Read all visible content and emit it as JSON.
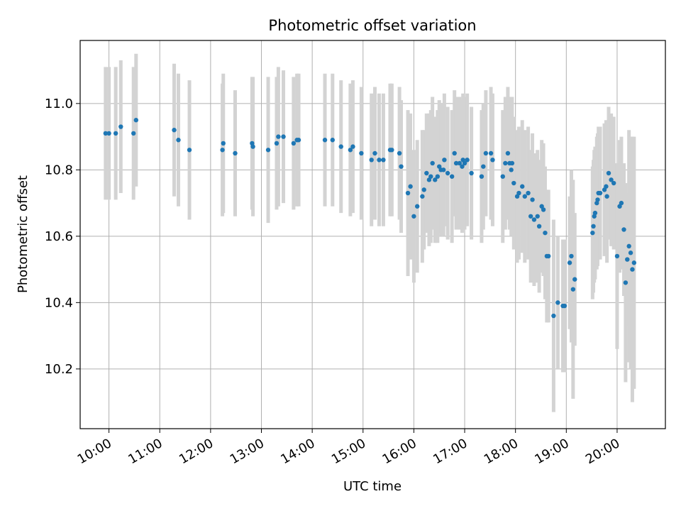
{
  "chart_data": {
    "type": "scatter",
    "title": "Photometric offset variation",
    "xlabel": "UTC time",
    "ylabel": "Photometric offset",
    "x_tick_labels": [
      "10:00",
      "11:00",
      "12:00",
      "13:00",
      "14:00",
      "15:00",
      "16:00",
      "17:00",
      "18:00",
      "19:00",
      "20:00"
    ],
    "y_ticks": [
      10.2,
      10.4,
      10.6,
      10.8,
      11.0
    ],
    "y_tick_labels": [
      "10.2",
      "10.4",
      "10.6",
      "10.8",
      "11.0"
    ],
    "xlim": [
      "09:26",
      "20:57"
    ],
    "ylim": [
      10.02,
      11.19
    ],
    "grid": true,
    "colors": {
      "marker": "#1f77b4",
      "errorbar": "#d3d3d3",
      "grid": "#b0b0b0"
    },
    "series": [
      {
        "points": [
          {
            "t": "09:56",
            "y": 10.91,
            "err": 0.2
          },
          {
            "t": "10:00",
            "y": 10.91,
            "err": 0.2
          },
          {
            "t": "10:08",
            "y": 10.91,
            "err": 0.2
          },
          {
            "t": "10:14",
            "y": 10.93,
            "err": 0.2
          },
          {
            "t": "10:29",
            "y": 10.91,
            "err": 0.2
          },
          {
            "t": "10:32",
            "y": 10.95,
            "err": 0.2
          },
          {
            "t": "11:17",
            "y": 10.92,
            "err": 0.2
          },
          {
            "t": "11:22",
            "y": 10.89,
            "err": 0.2
          },
          {
            "t": "11:35",
            "y": 10.86,
            "err": 0.21
          },
          {
            "t": "12:14",
            "y": 10.86,
            "err": 0.2
          },
          {
            "t": "12:15",
            "y": 10.88,
            "err": 0.21
          },
          {
            "t": "12:29",
            "y": 10.85,
            "err": 0.19
          },
          {
            "t": "12:49",
            "y": 10.88,
            "err": 0.2
          },
          {
            "t": "12:50",
            "y": 10.87,
            "err": 0.21
          },
          {
            "t": "13:08",
            "y": 10.86,
            "err": 0.22
          },
          {
            "t": "13:18",
            "y": 10.88,
            "err": 0.2
          },
          {
            "t": "13:20",
            "y": 10.9,
            "err": 0.21
          },
          {
            "t": "13:26",
            "y": 10.9,
            "err": 0.2
          },
          {
            "t": "13:38",
            "y": 10.88,
            "err": 0.2
          },
          {
            "t": "13:42",
            "y": 10.89,
            "err": 0.2
          },
          {
            "t": "13:44",
            "y": 10.89,
            "err": 0.2
          },
          {
            "t": "14:15",
            "y": 10.89,
            "err": 0.2
          },
          {
            "t": "14:24",
            "y": 10.89,
            "err": 0.2
          },
          {
            "t": "14:34",
            "y": 10.87,
            "err": 0.2
          },
          {
            "t": "14:45",
            "y": 10.86,
            "err": 0.2
          },
          {
            "t": "14:48",
            "y": 10.87,
            "err": 0.2
          },
          {
            "t": "14:58",
            "y": 10.85,
            "err": 0.2
          },
          {
            "t": "15:10",
            "y": 10.83,
            "err": 0.2
          },
          {
            "t": "15:14",
            "y": 10.85,
            "err": 0.2
          },
          {
            "t": "15:19",
            "y": 10.83,
            "err": 0.2
          },
          {
            "t": "15:24",
            "y": 10.83,
            "err": 0.2
          },
          {
            "t": "15:32",
            "y": 10.86,
            "err": 0.2
          },
          {
            "t": "15:34",
            "y": 10.86,
            "err": 0.2
          },
          {
            "t": "15:43",
            "y": 10.85,
            "err": 0.2
          },
          {
            "t": "15:45",
            "y": 10.81,
            "err": 0.2
          },
          {
            "t": "15:53",
            "y": 10.73,
            "err": 0.25
          },
          {
            "t": "15:56",
            "y": 10.75,
            "err": 0.22
          },
          {
            "t": "16:00",
            "y": 10.66,
            "err": 0.2
          },
          {
            "t": "16:04",
            "y": 10.69,
            "err": 0.2
          },
          {
            "t": "16:10",
            "y": 10.72,
            "err": 0.2
          },
          {
            "t": "16:12",
            "y": 10.74,
            "err": 0.18
          },
          {
            "t": "16:15",
            "y": 10.79,
            "err": 0.18
          },
          {
            "t": "16:18",
            "y": 10.77,
            "err": 0.2
          },
          {
            "t": "16:20",
            "y": 10.78,
            "err": 0.2
          },
          {
            "t": "16:22",
            "y": 10.82,
            "err": 0.2
          },
          {
            "t": "16:25",
            "y": 10.77,
            "err": 0.19
          },
          {
            "t": "16:28",
            "y": 10.78,
            "err": 0.2
          },
          {
            "t": "16:30",
            "y": 10.81,
            "err": 0.2
          },
          {
            "t": "16:32",
            "y": 10.8,
            "err": 0.2
          },
          {
            "t": "16:35",
            "y": 10.8,
            "err": 0.2
          },
          {
            "t": "16:36",
            "y": 10.83,
            "err": 0.2
          },
          {
            "t": "16:40",
            "y": 10.79,
            "err": 0.2
          },
          {
            "t": "16:45",
            "y": 10.78,
            "err": 0.2
          },
          {
            "t": "16:48",
            "y": 10.85,
            "err": 0.19
          },
          {
            "t": "16:50",
            "y": 10.82,
            "err": 0.2
          },
          {
            "t": "16:54",
            "y": 10.82,
            "err": 0.2
          },
          {
            "t": "16:57",
            "y": 10.81,
            "err": 0.2
          },
          {
            "t": "16:58",
            "y": 10.83,
            "err": 0.2
          },
          {
            "t": "17:00",
            "y": 10.82,
            "err": 0.2
          },
          {
            "t": "17:03",
            "y": 10.83,
            "err": 0.2
          },
          {
            "t": "17:08",
            "y": 10.79,
            "err": 0.2
          },
          {
            "t": "17:20",
            "y": 10.78,
            "err": 0.2
          },
          {
            "t": "17:22",
            "y": 10.81,
            "err": 0.19
          },
          {
            "t": "17:25",
            "y": 10.85,
            "err": 0.19
          },
          {
            "t": "17:31",
            "y": 10.85,
            "err": 0.2
          },
          {
            "t": "17:33",
            "y": 10.83,
            "err": 0.2
          },
          {
            "t": "17:45",
            "y": 10.78,
            "err": 0.2
          },
          {
            "t": "17:48",
            "y": 10.82,
            "err": 0.2
          },
          {
            "t": "17:51",
            "y": 10.85,
            "err": 0.2
          },
          {
            "t": "17:53",
            "y": 10.82,
            "err": 0.2
          },
          {
            "t": "17:55",
            "y": 10.8,
            "err": 0.2
          },
          {
            "t": "17:56",
            "y": 10.82,
            "err": 0.2
          },
          {
            "t": "17:58",
            "y": 10.76,
            "err": 0.2
          },
          {
            "t": "18:02",
            "y": 10.72,
            "err": 0.2
          },
          {
            "t": "18:04",
            "y": 10.73,
            "err": 0.2
          },
          {
            "t": "18:08",
            "y": 10.75,
            "err": 0.2
          },
          {
            "t": "18:11",
            "y": 10.72,
            "err": 0.2
          },
          {
            "t": "18:15",
            "y": 10.73,
            "err": 0.2
          },
          {
            "t": "18:18",
            "y": 10.66,
            "err": 0.2
          },
          {
            "t": "18:20",
            "y": 10.71,
            "err": 0.2
          },
          {
            "t": "18:22",
            "y": 10.65,
            "err": 0.2
          },
          {
            "t": "18:26",
            "y": 10.66,
            "err": 0.2
          },
          {
            "t": "18:28",
            "y": 10.63,
            "err": 0.2
          },
          {
            "t": "18:31",
            "y": 10.69,
            "err": 0.2
          },
          {
            "t": "18:33",
            "y": 10.68,
            "err": 0.2
          },
          {
            "t": "18:35",
            "y": 10.61,
            "err": 0.2
          },
          {
            "t": "18:37",
            "y": 10.54,
            "err": 0.2
          },
          {
            "t": "18:39",
            "y": 10.54,
            "err": 0.2
          },
          {
            "t": "18:45",
            "y": 10.36,
            "err": 0.29
          },
          {
            "t": "18:50",
            "y": 10.4,
            "err": 0.2
          },
          {
            "t": "18:56",
            "y": 10.39,
            "err": 0.2
          },
          {
            "t": "18:58",
            "y": 10.39,
            "err": 0.2
          },
          {
            "t": "19:04",
            "y": 10.52,
            "err": 0.2
          },
          {
            "t": "19:06",
            "y": 10.54,
            "err": 0.26
          },
          {
            "t": "19:08",
            "y": 10.44,
            "err": 0.33
          },
          {
            "t": "19:10",
            "y": 10.47,
            "err": 0.2
          },
          {
            "t": "19:31",
            "y": 10.61,
            "err": 0.2
          },
          {
            "t": "19:32",
            "y": 10.63,
            "err": 0.2
          },
          {
            "t": "19:33",
            "y": 10.66,
            "err": 0.2
          },
          {
            "t": "19:34",
            "y": 10.67,
            "err": 0.2
          },
          {
            "t": "19:36",
            "y": 10.7,
            "err": 0.2
          },
          {
            "t": "19:37",
            "y": 10.71,
            "err": 0.2
          },
          {
            "t": "19:38",
            "y": 10.73,
            "err": 0.2
          },
          {
            "t": "19:40",
            "y": 10.73,
            "err": 0.2
          },
          {
            "t": "19:45",
            "y": 10.74,
            "err": 0.2
          },
          {
            "t": "19:47",
            "y": 10.75,
            "err": 0.2
          },
          {
            "t": "19:48",
            "y": 10.72,
            "err": 0.2
          },
          {
            "t": "19:50",
            "y": 10.79,
            "err": 0.2
          },
          {
            "t": "19:53",
            "y": 10.77,
            "err": 0.2
          },
          {
            "t": "19:56",
            "y": 10.76,
            "err": 0.2
          },
          {
            "t": "20:00",
            "y": 10.54,
            "err": 0.28
          },
          {
            "t": "20:03",
            "y": 10.69,
            "err": 0.2
          },
          {
            "t": "20:05",
            "y": 10.7,
            "err": 0.2
          },
          {
            "t": "20:08",
            "y": 10.62,
            "err": 0.2
          },
          {
            "t": "20:10",
            "y": 10.46,
            "err": 0.3
          },
          {
            "t": "20:12",
            "y": 10.53,
            "err": 0.2
          },
          {
            "t": "20:14",
            "y": 10.57,
            "err": 0.35
          },
          {
            "t": "20:16",
            "y": 10.55,
            "err": 0.35
          },
          {
            "t": "20:18",
            "y": 10.5,
            "err": 0.4
          },
          {
            "t": "20:20",
            "y": 10.52,
            "err": 0.38
          }
        ]
      }
    ]
  }
}
